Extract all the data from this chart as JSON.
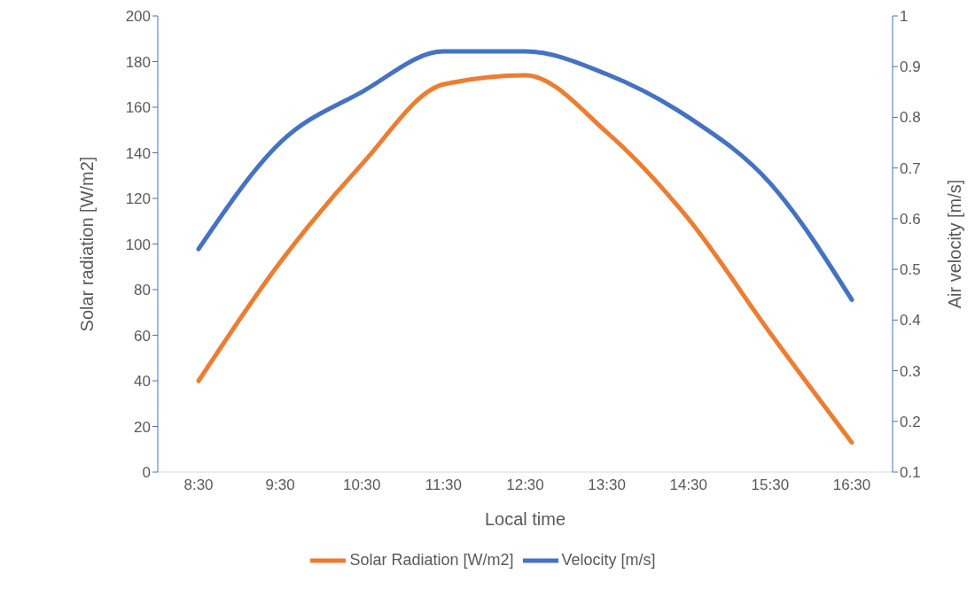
{
  "chart_data": {
    "type": "line",
    "xlabel": "Local time",
    "ylabel": "Solar radiation [W/m2]",
    "y2label": "Air velocity [m/s]",
    "categories": [
      "8:30",
      "9:30",
      "10:30",
      "11:30",
      "12:30",
      "13:30",
      "14:30",
      "15:30",
      "16:30"
    ],
    "series": [
      {
        "name": "Solar Radiation [W/m2]",
        "color": "#ed7d31",
        "values": [
          40,
          92,
          135,
          170,
          174,
          149,
          111,
          61,
          13
        ]
      },
      {
        "name": "Velocity [m/s]",
        "color": "#4472c4",
        "axis": "y2",
        "values": [
          0.54,
          0.75,
          0.85,
          0.93,
          0.93,
          0.885,
          0.8,
          0.67,
          0.44
        ]
      }
    ],
    "ylim": [
      0,
      200
    ],
    "yticks": [
      0,
      20,
      40,
      60,
      80,
      100,
      120,
      140,
      160,
      180,
      200
    ],
    "y2lim": [
      0.1,
      1
    ],
    "y2ticks": [
      0.1,
      0.2,
      0.3,
      0.4,
      0.5,
      0.6,
      0.7,
      0.8,
      0.9,
      1
    ],
    "legend": "bottom",
    "marker": "none",
    "line_style": "solid",
    "grid": false
  }
}
